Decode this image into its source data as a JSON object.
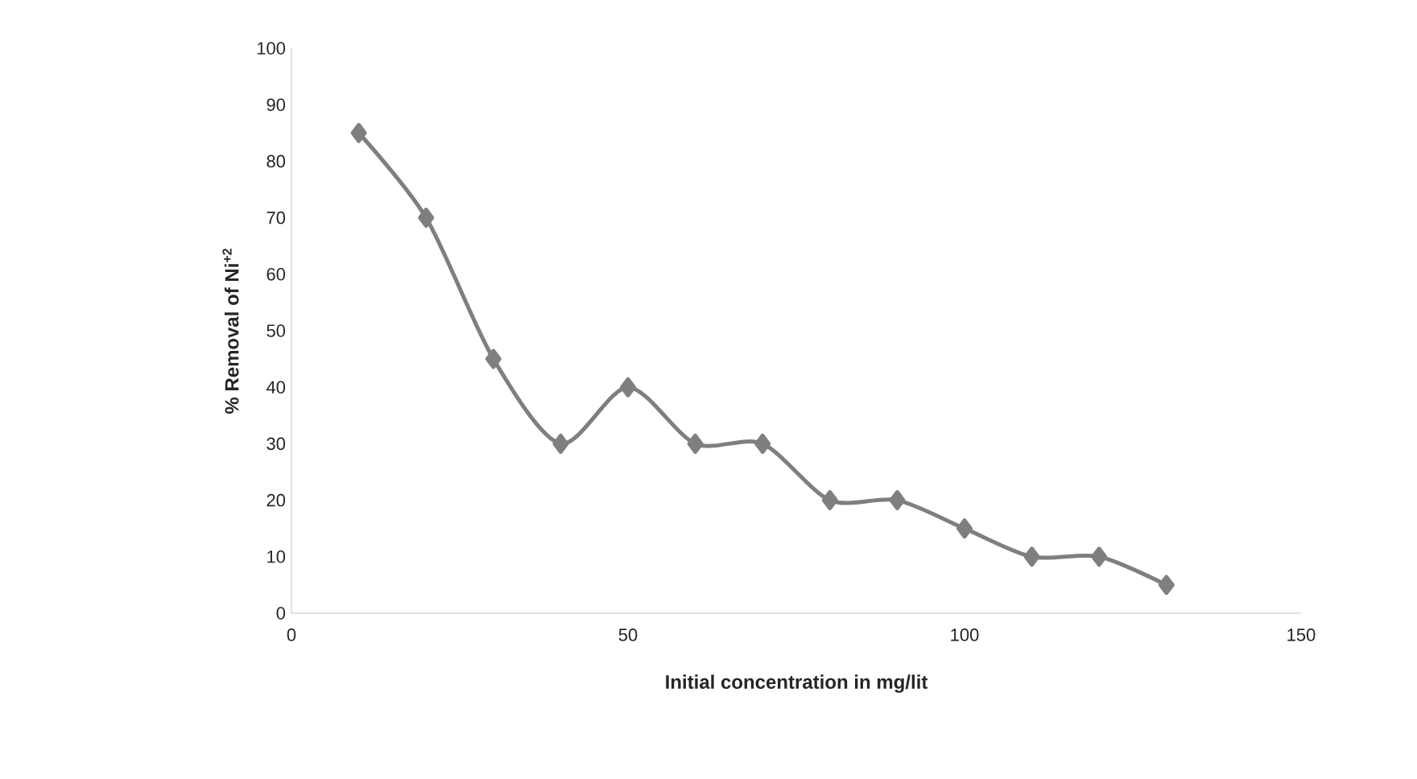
{
  "chart_data": {
    "type": "line",
    "xlabel": "Initial concentration in mg/lit",
    "ylabel": "% Removal  of Ni$^{+2}$",
    "x": [
      10,
      20,
      30,
      40,
      50,
      60,
      70,
      80,
      90,
      100,
      110,
      120,
      130
    ],
    "series": [
      {
        "color": "#7f7f7f",
        "values": [
          85,
          70,
          45,
          30,
          40,
          30,
          30,
          20,
          20,
          15,
          10,
          10,
          5
        ]
      }
    ],
    "xlim": [
      0,
      150
    ],
    "xticks": [
      0,
      50,
      100,
      150
    ],
    "ylim": [
      0,
      100
    ],
    "yticks": [
      0,
      10,
      20,
      30,
      40,
      50,
      60,
      70,
      80,
      90,
      100
    ],
    "marker": "diamond",
    "line_style": "solid"
  }
}
